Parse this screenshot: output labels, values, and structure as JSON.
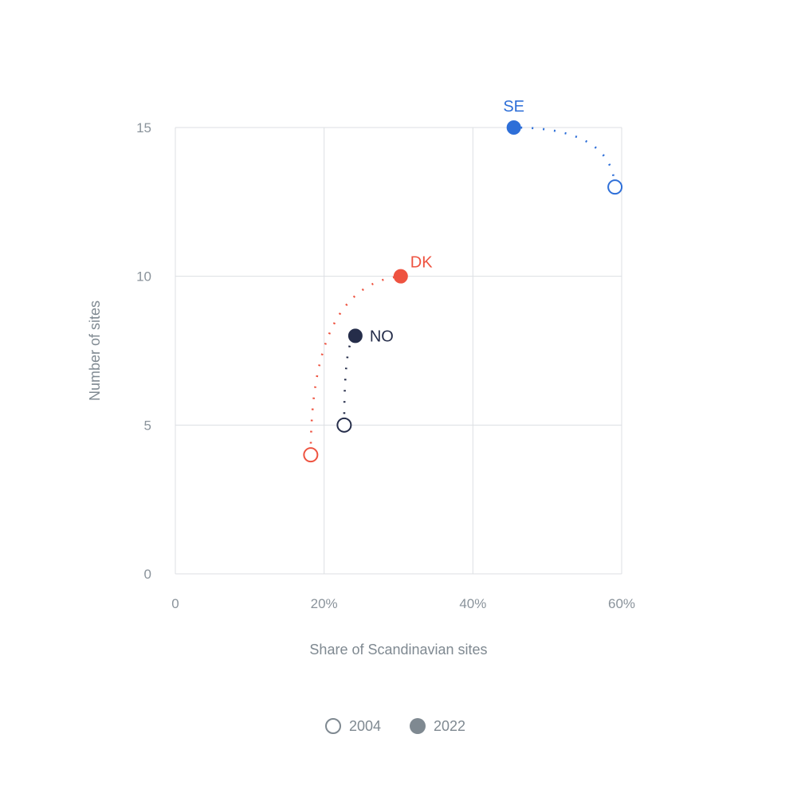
{
  "chart_data": {
    "type": "scatter",
    "title": "",
    "xlabel": "Share of Scandinavian sites",
    "ylabel": "Number of sites",
    "xlim": [
      0,
      60
    ],
    "ylim": [
      0,
      15
    ],
    "x_unit": "%",
    "x_ticks": [
      0,
      20,
      40,
      60
    ],
    "x_tick_labels": [
      "0",
      "20%",
      "40%",
      "60%"
    ],
    "y_ticks": [
      0,
      5,
      10,
      15
    ],
    "y_tick_labels": [
      "0",
      "5",
      "10",
      "15"
    ],
    "grid": true,
    "legend_position": "bottom-center",
    "legend": [
      {
        "label": "2004",
        "style": "hollow"
      },
      {
        "label": "2022",
        "style": "filled"
      }
    ],
    "series": [
      {
        "name": "SE",
        "color": "#2e6fd8",
        "start": {
          "year": "2004",
          "x": 59.1,
          "y": 13
        },
        "end": {
          "year": "2022",
          "x": 45.5,
          "y": 15
        },
        "label_position": "above"
      },
      {
        "name": "DK",
        "color": "#ee5340",
        "start": {
          "year": "2004",
          "x": 18.2,
          "y": 4
        },
        "end": {
          "year": "2022",
          "x": 30.3,
          "y": 10
        },
        "label_position": "above-right"
      },
      {
        "name": "NO",
        "color": "#252d4a",
        "start": {
          "year": "2004",
          "x": 22.7,
          "y": 5
        },
        "end": {
          "year": "2022",
          "x": 24.2,
          "y": 8
        },
        "label_position": "right"
      }
    ]
  }
}
